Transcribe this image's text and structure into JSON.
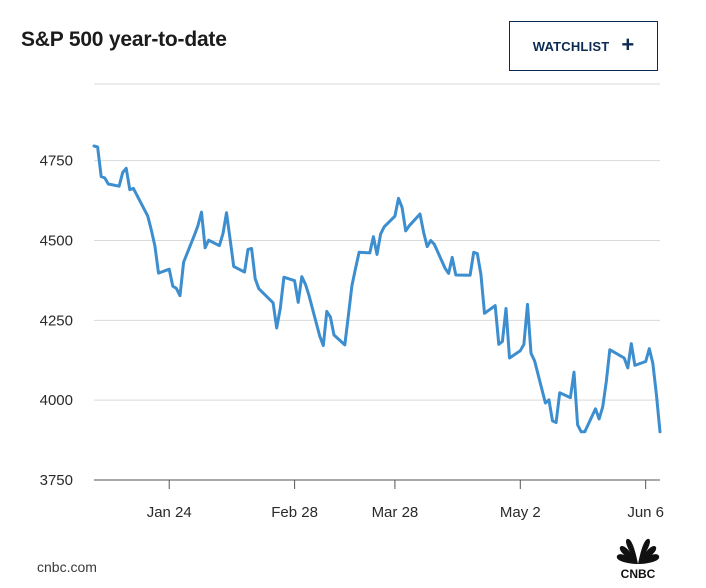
{
  "header": {
    "title": "S&P 500 year-to-date",
    "watchlist_label": "WATCHLIST",
    "watchlist_icon": "plus-icon"
  },
  "footer": {
    "source": "cnbc.com",
    "logo": "CNBC",
    "logo_icon": "cnbc-peacock-icon"
  },
  "colors": {
    "line": "#3d8ecf",
    "grid": "#d9d9d9",
    "button_border": "#0b2b52"
  },
  "chart_data": {
    "type": "line",
    "title": "S&P 500 year-to-date",
    "xlabel": "",
    "ylabel": "",
    "ylim": [
      3750,
      4990
    ],
    "yticks": [
      3750,
      4000,
      4250,
      4500,
      4750
    ],
    "ytick_labels": [
      "3750",
      "4000",
      "4250",
      "4500",
      "4750"
    ],
    "xlim": [
      "2022-01-03",
      "2022-06-10"
    ],
    "xticks": [
      "2022-01-24",
      "2022-02-28",
      "2022-03-28",
      "2022-05-02",
      "2022-06-06"
    ],
    "xtick_labels": [
      "Jan 24",
      "Feb 28",
      "Mar 28",
      "May 2",
      "Jun 6"
    ],
    "grid": "horizontal",
    "legend": "none",
    "series": [
      {
        "name": "",
        "x": [
          "2022-01-03",
          "2022-01-04",
          "2022-01-05",
          "2022-01-06",
          "2022-01-07",
          "2022-01-10",
          "2022-01-11",
          "2022-01-12",
          "2022-01-13",
          "2022-01-14",
          "2022-01-18",
          "2022-01-19",
          "2022-01-20",
          "2022-01-21",
          "2022-01-24",
          "2022-01-25",
          "2022-01-26",
          "2022-01-27",
          "2022-01-28",
          "2022-01-31",
          "2022-02-01",
          "2022-02-02",
          "2022-02-03",
          "2022-02-04",
          "2022-02-07",
          "2022-02-08",
          "2022-02-09",
          "2022-02-10",
          "2022-02-11",
          "2022-02-14",
          "2022-02-15",
          "2022-02-16",
          "2022-02-17",
          "2022-02-18",
          "2022-02-22",
          "2022-02-23",
          "2022-02-24",
          "2022-02-25",
          "2022-02-28",
          "2022-03-01",
          "2022-03-02",
          "2022-03-03",
          "2022-03-04",
          "2022-03-07",
          "2022-03-08",
          "2022-03-09",
          "2022-03-10",
          "2022-03-11",
          "2022-03-14",
          "2022-03-15",
          "2022-03-16",
          "2022-03-17",
          "2022-03-18",
          "2022-03-21",
          "2022-03-22",
          "2022-03-23",
          "2022-03-24",
          "2022-03-25",
          "2022-03-28",
          "2022-03-29",
          "2022-03-30",
          "2022-03-31",
          "2022-04-01",
          "2022-04-04",
          "2022-04-05",
          "2022-04-06",
          "2022-04-07",
          "2022-04-08",
          "2022-04-11",
          "2022-04-12",
          "2022-04-13",
          "2022-04-14",
          "2022-04-18",
          "2022-04-19",
          "2022-04-20",
          "2022-04-21",
          "2022-04-22",
          "2022-04-25",
          "2022-04-26",
          "2022-04-27",
          "2022-04-28",
          "2022-04-29",
          "2022-05-02",
          "2022-05-03",
          "2022-05-04",
          "2022-05-05",
          "2022-05-06",
          "2022-05-09",
          "2022-05-10",
          "2022-05-11",
          "2022-05-12",
          "2022-05-13",
          "2022-05-16",
          "2022-05-17",
          "2022-05-18",
          "2022-05-19",
          "2022-05-20",
          "2022-05-23",
          "2022-05-24",
          "2022-05-25",
          "2022-05-26",
          "2022-05-27",
          "2022-05-31",
          "2022-06-01",
          "2022-06-02",
          "2022-06-03",
          "2022-06-06",
          "2022-06-07",
          "2022-06-08",
          "2022-06-09",
          "2022-06-10"
        ],
        "values": [
          4796,
          4793,
          4700,
          4696,
          4677,
          4670,
          4713,
          4726,
          4659,
          4663,
          4577,
          4533,
          4483,
          4398,
          4410,
          4357,
          4350,
          4327,
          4432,
          4516,
          4546,
          4589,
          4477,
          4501,
          4484,
          4522,
          4587,
          4504,
          4419,
          4401,
          4472,
          4475,
          4380,
          4349,
          4305,
          4226,
          4288,
          4385,
          4374,
          4306,
          4387,
          4363,
          4329,
          4201,
          4171,
          4278,
          4260,
          4204,
          4173,
          4263,
          4358,
          4412,
          4463,
          4461,
          4512,
          4456,
          4520,
          4543,
          4576,
          4632,
          4603,
          4530,
          4546,
          4583,
          4526,
          4481,
          4500,
          4488,
          4413,
          4397,
          4447,
          4392,
          4391,
          4463,
          4459,
          4394,
          4272,
          4296,
          4175,
          4184,
          4287,
          4132,
          4155,
          4175,
          4300,
          4147,
          4123,
          3991,
          4001,
          3935,
          3930,
          4023,
          4008,
          4088,
          3923,
          3901,
          3901,
          3973,
          3941,
          3979,
          4058,
          4158,
          4132,
          4101,
          4177,
          4109,
          4121,
          4161,
          4116,
          4018,
          3901
        ]
      }
    ]
  }
}
